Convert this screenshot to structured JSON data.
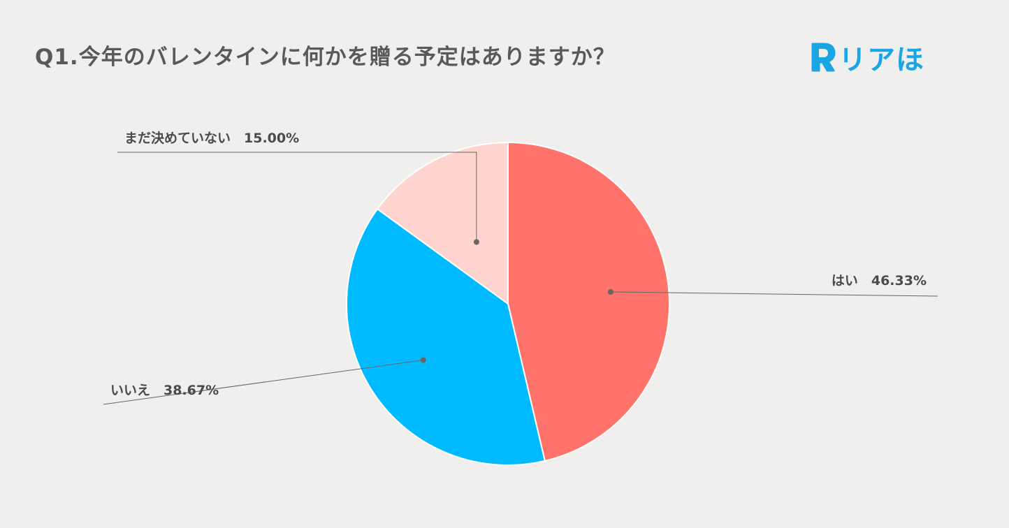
{
  "title": "Q1.今年のバレンタインに何かを贈る予定はありますか？",
  "logo": {
    "text": "リアほ",
    "color": "#1aa6e4"
  },
  "chart_data": {
    "type": "pie",
    "start_angle": "12 o'clock",
    "direction": "clockwise",
    "slices": [
      {
        "label": "はい",
        "value": 46.33,
        "display": "はい　46.33%",
        "color": "#ff736a"
      },
      {
        "label": "いいえ",
        "value": 38.67,
        "display": "いいえ　38.67%",
        "color": "#00baff"
      },
      {
        "label": "まだ決めていない",
        "value": 15.0,
        "display": "まだ決めていない　15.00%",
        "color": "#ffd4cf"
      }
    ]
  }
}
